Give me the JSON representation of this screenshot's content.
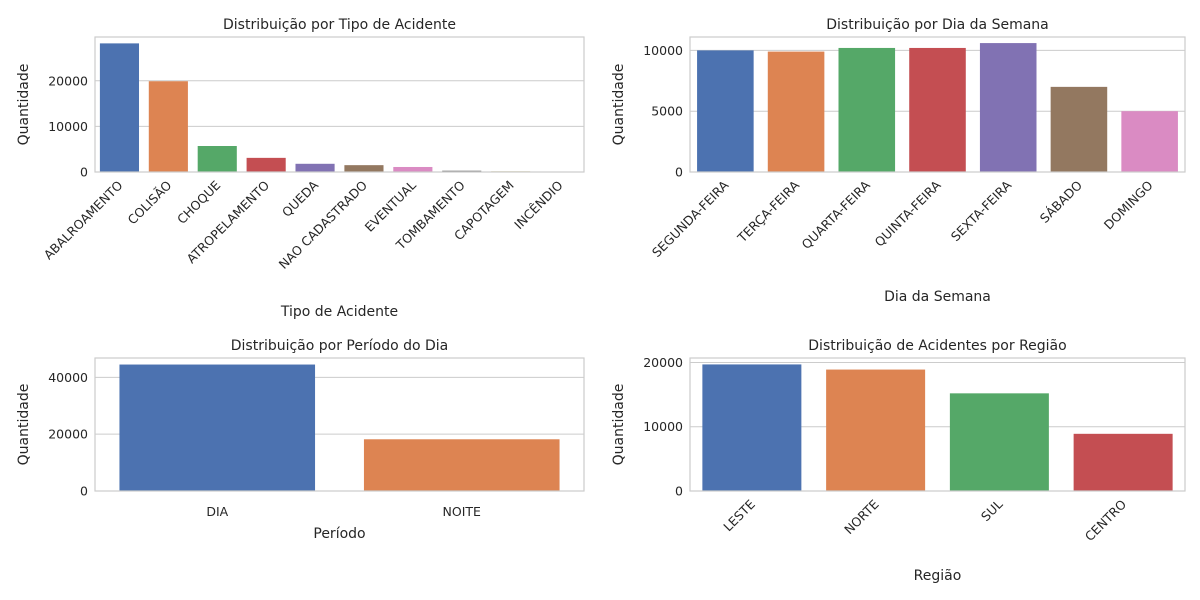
{
  "chart_data": [
    {
      "type": "bar",
      "title": "Distribuição por Tipo de Acidente",
      "xlabel": "Tipo de Acidente",
      "ylabel": "Quantidade",
      "categories": [
        "ABALROAMENTO",
        "COLISÃO",
        "CHOQUE",
        "ATROPELAMENTO",
        "QUEDA",
        "NAO CADASTRADO",
        "EVENTUAL",
        "TOMBAMENTO",
        "CAPOTAGEM",
        "INCÊNDIO"
      ],
      "values": [
        28200,
        19900,
        5700,
        3100,
        1800,
        1500,
        1100,
        300,
        150,
        50
      ],
      "yticks": [
        0,
        10000,
        20000
      ],
      "ylim": [
        0,
        29600
      ],
      "grid": true,
      "xtick_rotation": 45
    },
    {
      "type": "bar",
      "title": "Distribuição por Dia da Semana",
      "xlabel": "Dia da Semana",
      "ylabel": "Quantidade",
      "categories": [
        "SEGUNDA-FEIRA",
        "TERÇA-FEIRA",
        "QUARTA-FEIRA",
        "QUINTA-FEIRA",
        "SEXTA-FEIRA",
        "SÁBADO",
        "DOMINGO"
      ],
      "values": [
        10000,
        9900,
        10200,
        10200,
        10600,
        7000,
        5000
      ],
      "yticks": [
        0,
        5000,
        10000
      ],
      "ylim": [
        0,
        11100
      ],
      "grid": true,
      "xtick_rotation": 45
    },
    {
      "type": "bar",
      "title": "Distribuição por Período do Dia",
      "xlabel": "Período",
      "ylabel": "Quantidade",
      "categories": [
        "DIA",
        "NOITE"
      ],
      "values": [
        44500,
        18200
      ],
      "yticks": [
        0,
        20000,
        40000
      ],
      "ylim": [
        0,
        46800
      ],
      "grid": true,
      "xtick_rotation": 0
    },
    {
      "type": "bar",
      "title": "Distribuição de Acidentes por Região",
      "xlabel": "Região",
      "ylabel": "Quantidade",
      "categories": [
        "LESTE",
        "NORTE",
        "SUL",
        "CENTRO"
      ],
      "values": [
        19700,
        18900,
        15200,
        8900
      ],
      "yticks": [
        0,
        10000,
        20000
      ],
      "ylim": [
        0,
        20700
      ],
      "grid": true,
      "xtick_rotation": 45
    }
  ],
  "colors": [
    "#4c72b0",
    "#dd8452",
    "#55a868",
    "#c44e52",
    "#8172b3",
    "#937860",
    "#da8bc3",
    "#8c8c8c",
    "#ccb974",
    "#64b5cd"
  ]
}
